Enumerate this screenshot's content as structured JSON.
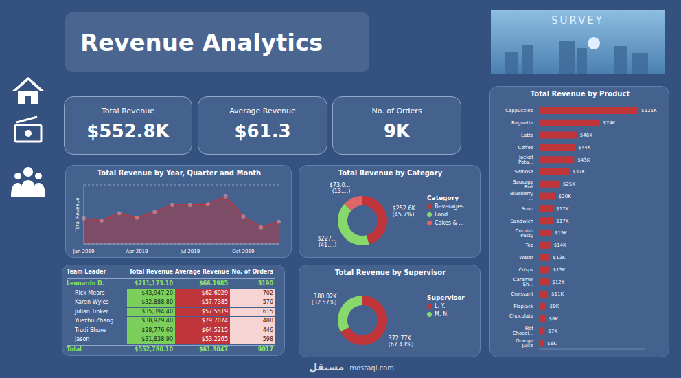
{
  "header": {
    "title": "Revenue Analytics",
    "image_text": "SURVEY"
  },
  "watermark": {
    "text": "مستقل",
    "url": "mostaql.com"
  },
  "kpis": [
    {
      "label": "Total Revenue",
      "value": "$552.8K"
    },
    {
      "label": "Average Revenue",
      "value": "$61.3"
    },
    {
      "label": "No. of Orders",
      "value": "9K"
    }
  ],
  "chart_data": [
    {
      "type": "area",
      "title": "Total Revenue by Year, Quarter and Month",
      "y_label": "Total Revenue",
      "categories": [
        "Jan 2019",
        null,
        null,
        "Apr 2019",
        null,
        null,
        "Jul 2019",
        null,
        null,
        "Oct 2019",
        null,
        null
      ],
      "values": [
        41700,
        39800,
        46000,
        42200,
        47000,
        53200,
        53200,
        53600,
        60300,
        43200,
        34100,
        38900
      ],
      "color": "#c0353a",
      "marker": "circle",
      "ylim": [
        20000,
        70000
      ],
      "yticks": [
        20000,
        45000,
        70000
      ],
      "grid": true,
      "tick_labels": "x"
    },
    {
      "type": "pie",
      "title": "Total Revenue by Category",
      "legend_title": "Category",
      "legend": "right",
      "categories": [
        "Beverages",
        "Food",
        "Cakes & ..."
      ],
      "values": [
        252600,
        227200,
        73000
      ],
      "value_labels": [
        "$252.6K (45.7%)",
        "$227... (41....)",
        "$73.0... (13....)"
      ],
      "colors": [
        "#c0353a",
        "#86d96a",
        "#e06666"
      ],
      "data_labels": true
    },
    {
      "type": "pie",
      "title": "Total Revenue by Supervisor",
      "legend_title": "Supervisor",
      "legend": "right",
      "categories": [
        "L. Y.",
        "M. N."
      ],
      "values": [
        372770,
        180020
      ],
      "value_labels": [
        "372.77K (67.43%)",
        "180.02K (32.57%)"
      ],
      "colors": [
        "#c0353a",
        "#86d96a"
      ],
      "data_labels": true
    },
    {
      "type": "bar",
      "title": "Total Revenue by Product",
      "orientation": "horizontal",
      "categories": [
        "Cappuccino",
        "Baguette",
        "Latte",
        "Coffee",
        "Jacket Pota...",
        "Samosa",
        "Sausage Roll",
        "Blueberry ...",
        "Soup",
        "Sandwich",
        "Cornish Pasty",
        "Tea",
        "Water",
        "Crisps",
        "Caramel Sh...",
        "Croissant",
        "Flapjack",
        "Chocolate ...",
        "Hot Chocol...",
        "Orange Juice"
      ],
      "values": [
        121000,
        74000,
        46000,
        44000,
        43000,
        37000,
        25000,
        20000,
        17000,
        17000,
        15000,
        14000,
        13000,
        13000,
        12000,
        11000,
        9000,
        8000,
        7000,
        6000
      ],
      "value_labels": [
        "$121K",
        "$74K",
        "$46K",
        "$44K",
        "$43K",
        "$37K",
        "$25K",
        "$20K",
        "$17K",
        "$17K",
        "$15K",
        "$14K",
        "$13K",
        "$13K",
        "$12K",
        "$11K",
        "$9K",
        "$8K",
        "$7K",
        "$6K"
      ],
      "color": "#c0353a",
      "xlim": [
        0,
        130000
      ],
      "data_labels": true,
      "tick_labels": "y"
    }
  ],
  "table": {
    "columns": [
      "Team Leader",
      "Total Revenue",
      "Average Revenue",
      "No. of Orders"
    ],
    "rows": [
      [
        "Leonardo D.",
        "$211,173.10",
        "$66.1985",
        "3190"
      ],
      [
        "Rick Mears",
        "$43,947.20",
        "$62.6029",
        "702"
      ],
      [
        "Karen Wyles",
        "$32,888.80",
        "$57.7385",
        "570"
      ],
      [
        "Julian Tinker",
        "$35,394.40",
        "$57.5519",
        "615"
      ],
      [
        "Yuezhu Zhang",
        "$38,929.40",
        "$79.7074",
        "488"
      ],
      [
        "Trudi Shore",
        "$28,776.60",
        "$64.5215",
        "446"
      ],
      [
        "Jason",
        "$31,838.90",
        "$53.2265",
        "598"
      ],
      [
        "Total",
        "$552,780.10",
        "$61.3047",
        "9017"
      ]
    ]
  }
}
